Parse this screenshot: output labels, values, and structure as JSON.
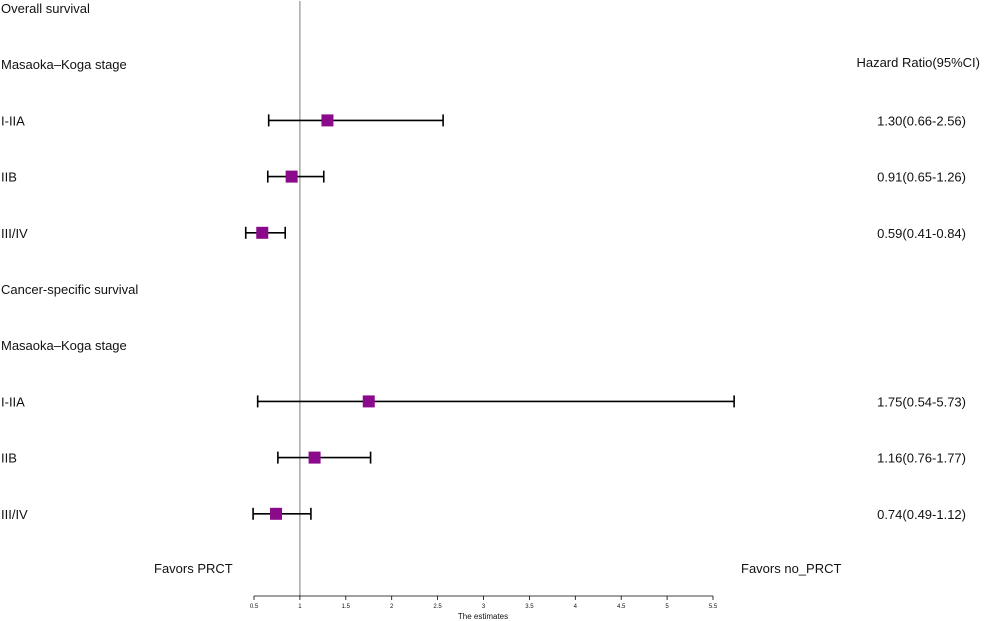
{
  "chart_data": {
    "type": "forest",
    "title": "",
    "hr_header": "Hazard Ratio(95%CI)",
    "xlabel": "The estimates",
    "xlim": [
      0.5,
      5.5
    ],
    "xticks": [
      "0.5",
      "1",
      "1.5",
      "2",
      "2.5",
      "3",
      "3.5",
      "4",
      "4.5",
      "5",
      "5.5"
    ],
    "xtick_values": [
      0.5,
      1,
      1.5,
      2,
      2.5,
      3,
      3.5,
      4,
      4.5,
      5,
      5.5
    ],
    "reference_line": 1,
    "marker_color": "#8b0a8b",
    "reference_line_color": "#9a9a9a",
    "favors_left": "Favors PRCT",
    "favors_right": "Favors no_PRCT",
    "rows": [
      {
        "label": "Overall survival",
        "kind": "header"
      },
      {
        "label": "Masaoka–Koga stage",
        "kind": "header"
      },
      {
        "label": "I-IIA",
        "kind": "estimate",
        "hr": 1.3,
        "lower": 0.66,
        "upper": 2.56,
        "text": "1.30(0.66-2.56)"
      },
      {
        "label": "IIB",
        "kind": "estimate",
        "hr": 0.91,
        "lower": 0.65,
        "upper": 1.26,
        "text": "0.91(0.65-1.26)"
      },
      {
        "label": "III/IV",
        "kind": "estimate",
        "hr": 0.59,
        "lower": 0.41,
        "upper": 0.84,
        "text": "0.59(0.41-0.84)"
      },
      {
        "label": "Cancer-specific survival",
        "kind": "header"
      },
      {
        "label": "Masaoka–Koga stage",
        "kind": "header"
      },
      {
        "label": "I-IIA",
        "kind": "estimate",
        "hr": 1.75,
        "lower": 0.54,
        "upper": 5.73,
        "text": "1.75(0.54-5.73)"
      },
      {
        "label": "IIB",
        "kind": "estimate",
        "hr": 1.16,
        "lower": 0.76,
        "upper": 1.77,
        "text": "1.16(0.76-1.77)"
      },
      {
        "label": "III/IV",
        "kind": "estimate",
        "hr": 0.74,
        "lower": 0.49,
        "upper": 1.12,
        "text": "0.74(0.49-1.12)"
      }
    ]
  }
}
